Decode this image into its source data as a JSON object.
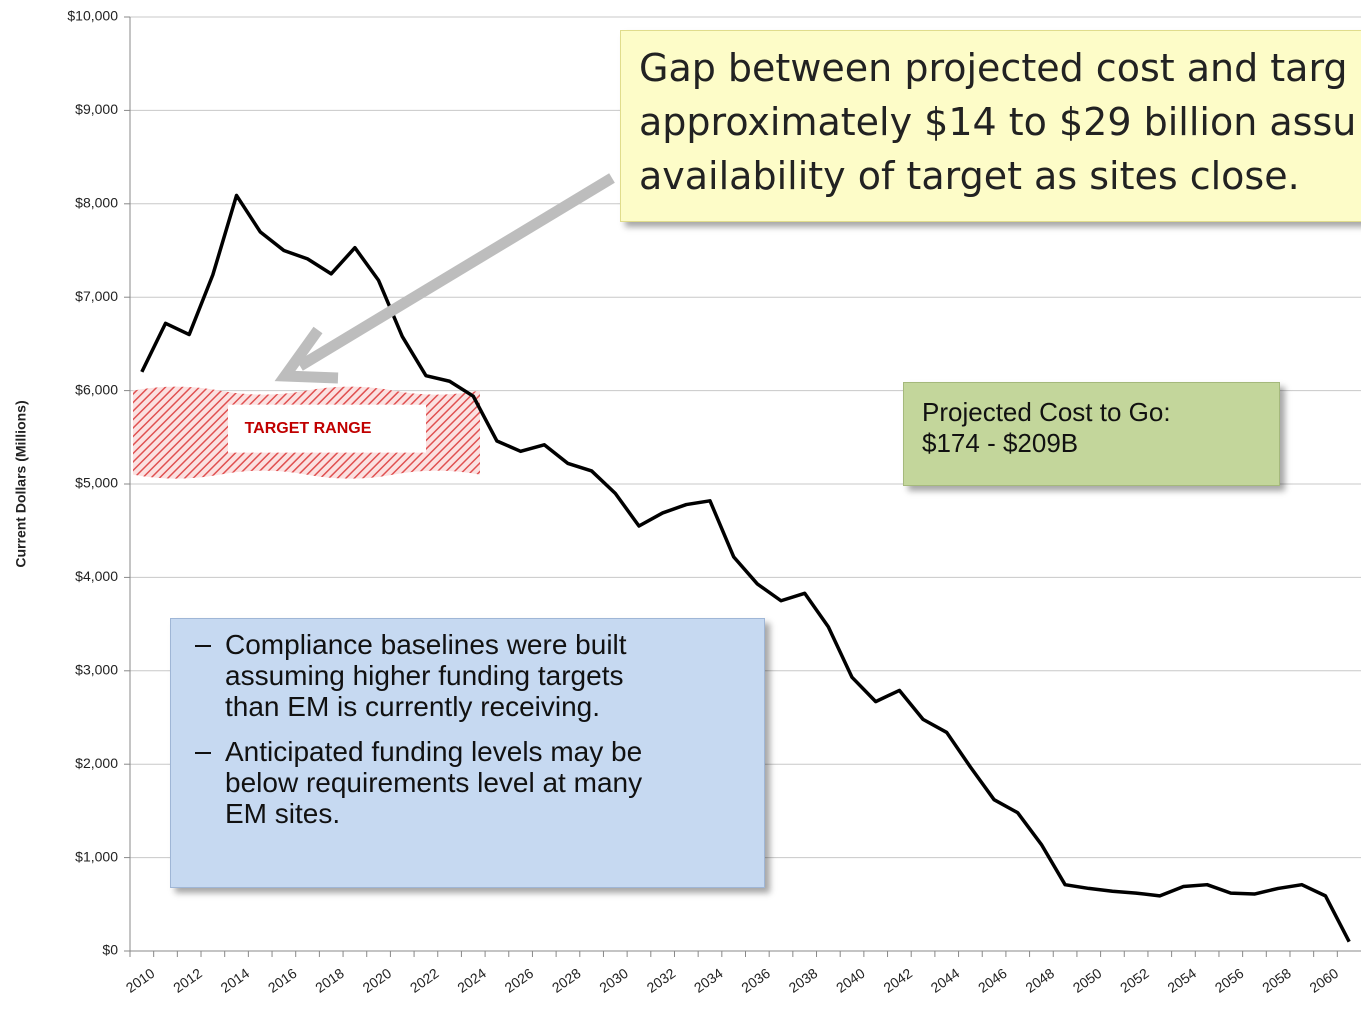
{
  "chart_data": {
    "type": "line",
    "y_label": "Current Dollars (Millions)",
    "categories": [
      "2010",
      null,
      "2012",
      null,
      "2014",
      null,
      "2016",
      null,
      "2018",
      null,
      "2020",
      null,
      "2022",
      null,
      "2024",
      null,
      "2026",
      null,
      "2028",
      null,
      "2030",
      null,
      "2032",
      null,
      "2034",
      null,
      "2036",
      null,
      "2038",
      null,
      "2040",
      null,
      "2042",
      null,
      "2044",
      null,
      "2046",
      null,
      "2048",
      null,
      "2050",
      null,
      "2052",
      null,
      "2054",
      null,
      "2056",
      null,
      "2058",
      null,
      "2060",
      null
    ],
    "values": [
      6200,
      6720,
      6600,
      7240,
      8090,
      7700,
      7500,
      7410,
      7250,
      7530,
      7180,
      6580,
      6160,
      6100,
      5940,
      5460,
      5350,
      5420,
      5220,
      5140,
      4900,
      4550,
      4690,
      4780,
      4820,
      4220,
      3930,
      3750,
      3830,
      3470,
      2930,
      2670,
      2790,
      2480,
      2340,
      1970,
      1620,
      1480,
      1140,
      710,
      670,
      640,
      620,
      590,
      690,
      710,
      620,
      610,
      670,
      710,
      590,
      100
    ],
    "color": "#000000",
    "ylim": [
      0,
      10000
    ],
    "yticks": [
      {
        "value": 0,
        "label": "$0"
      },
      {
        "value": 1000,
        "label": "$1,000"
      },
      {
        "value": 2000,
        "label": "$2,000"
      },
      {
        "value": 3000,
        "label": "$3,000"
      },
      {
        "value": 4000,
        "label": "$4,000"
      },
      {
        "value": 5000,
        "label": "$5,000"
      },
      {
        "value": 6000,
        "label": "$6,000"
      },
      {
        "value": 7000,
        "label": "$7,000"
      },
      {
        "value": 8000,
        "label": "$8,000"
      },
      {
        "value": 9000,
        "label": "$9,000"
      },
      {
        "value": 10000,
        "label": "$10,000"
      }
    ],
    "grid": true,
    "target_range": {
      "label": "TARGET RANGE",
      "low": 5100,
      "high": 6000,
      "color": "#e05050"
    },
    "callout": [
      "Gap between projected cost and targ",
      "approximately $14 to $29 billion assu",
      "availability of target as sites close."
    ],
    "projected_cost": [
      "Projected Cost to Go:",
      "$174 - $209B"
    ],
    "notes": [
      [
        "Compliance baselines were built",
        "assuming higher funding targets",
        "than EM is currently receiving."
      ],
      [
        "Anticipated funding levels may be",
        "below requirements level at many",
        "EM sites."
      ]
    ]
  }
}
